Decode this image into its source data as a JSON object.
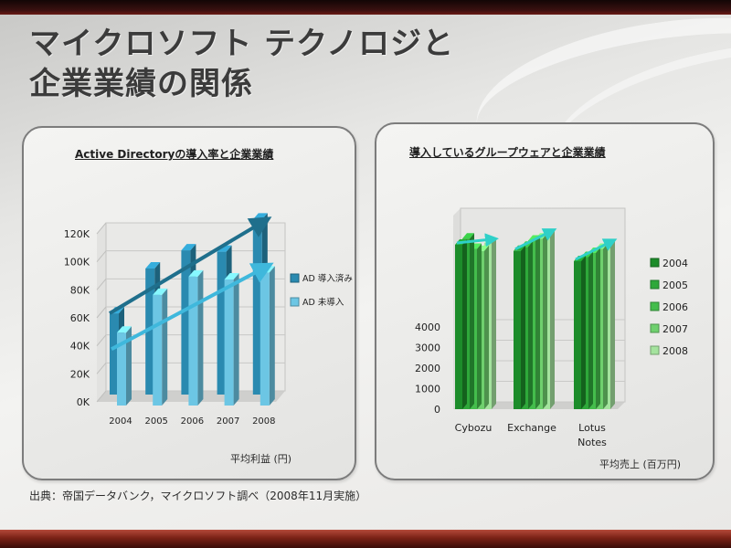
{
  "slide": {
    "title_line1": "マイクロソフト テクノロジと",
    "title_line2": "企業業績の関係",
    "source": "出典：帝国データバンク，マイクロソフト調べ（2008年11月実施）"
  },
  "chart_data": [
    {
      "type": "bar",
      "title": "Active Directoryの導入率と企業業績",
      "categories": [
        "2004",
        "2005",
        "2006",
        "2007",
        "2008"
      ],
      "series": [
        {
          "name": "AD 導入済み",
          "values": [
            58000,
            90000,
            103000,
            102000,
            125000
          ]
        },
        {
          "name": "AD 未導入",
          "values": [
            52000,
            79000,
            92000,
            90000,
            95000
          ]
        }
      ],
      "ylim": [
        0,
        120000
      ],
      "yticks": [
        "0K",
        "20K",
        "40K",
        "60K",
        "80K",
        "100K",
        "120K"
      ],
      "xlabel": "",
      "ylabel": "",
      "unit_label": "平均利益 (円)",
      "legend_position": "right",
      "colors": {
        "AD 導入済み": "#2a8ab0",
        "AD 未導入": "#6cc6e4"
      }
    },
    {
      "type": "bar",
      "title": "導入しているグループウェアと企業業績",
      "categories": [
        "Cybozu",
        "Exchange",
        "Lotus Notes"
      ],
      "series": [
        {
          "name": "2004",
          "values": [
            8000,
            7700,
            7200
          ]
        },
        {
          "name": "2005",
          "values": [
            8300,
            7900,
            7400
          ]
        },
        {
          "name": "2006",
          "values": [
            7800,
            8200,
            7600
          ]
        },
        {
          "name": "2007",
          "values": [
            7700,
            8300,
            7800
          ]
        },
        {
          "name": "2008",
          "values": [
            8100,
            8500,
            8000
          ]
        }
      ],
      "ylim": [
        0,
        4000
      ],
      "yticks": [
        "0",
        "1000",
        "2000",
        "3000",
        "4000"
      ],
      "xlabel": "",
      "ylabel": "",
      "unit_label": "平均売上 (百万円)",
      "legend_position": "right",
      "colors": {
        "2004": "#1c8c2a",
        "2005": "#2ea83a",
        "2006": "#44bd4c",
        "2007": "#6fd06e",
        "2008": "#a4e39e"
      }
    }
  ]
}
